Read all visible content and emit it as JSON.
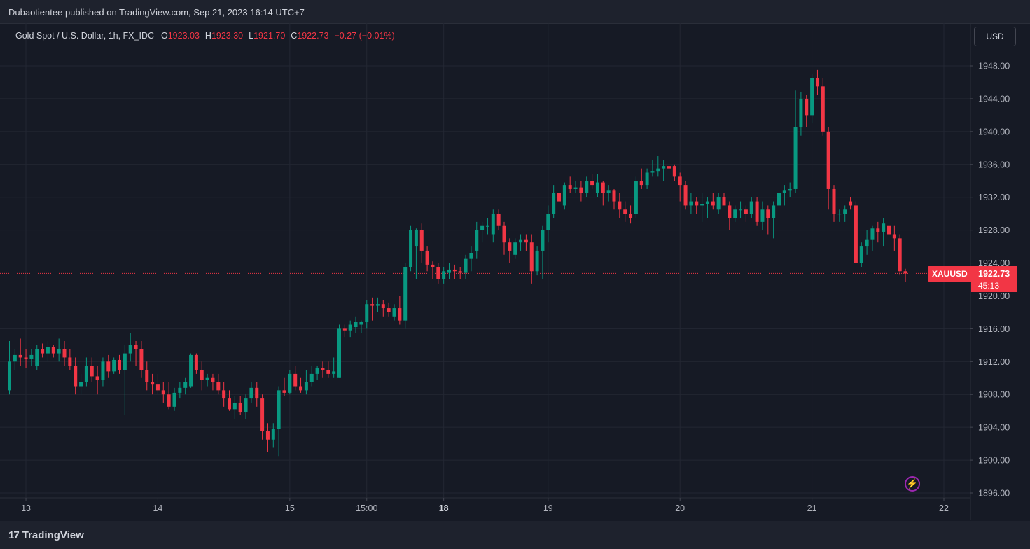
{
  "header": {
    "publish_line": "Dubaotientee published on TradingView.com, Sep 21, 2023 16:14 UTC+7"
  },
  "legend": {
    "symbol": "Gold Spot / U.S. Dollar, 1h, FX_IDC",
    "o_label": "O",
    "o_value": "1923.03",
    "h_label": "H",
    "h_value": "1923.30",
    "l_label": "L",
    "l_value": "1921.70",
    "c_label": "C",
    "c_value": "1922.73",
    "change": "−0.27 (−0.01%)"
  },
  "currency_button": "USD",
  "last_price": {
    "symbol": "XAUUSD",
    "price": "1922.73",
    "countdown": "45:13"
  },
  "footer": {
    "brand": "TradingView",
    "logo_mark": "17"
  },
  "colors": {
    "up": "#089981",
    "down": "#f23645",
    "accent": "#9c27b0"
  },
  "chart_data": {
    "type": "candlestick",
    "title": "Gold Spot / U.S. Dollar, 1h, FX_IDC",
    "ylim": [
      1896,
      1950
    ],
    "y_ticks": [
      "1896.00",
      "1900.00",
      "1904.00",
      "1908.00",
      "1912.00",
      "1916.00",
      "1920.00",
      "1924.00",
      "1928.00",
      "1932.00",
      "1936.00",
      "1940.00",
      "1944.00",
      "1948.00"
    ],
    "x_ticks": [
      {
        "label": "13",
        "index": 3,
        "bold": false
      },
      {
        "label": "14",
        "index": 27,
        "bold": false
      },
      {
        "label": "15",
        "index": 51,
        "bold": false
      },
      {
        "label": "15:00",
        "index": 65,
        "bold": false
      },
      {
        "label": "18",
        "index": 79,
        "bold": true
      },
      {
        "label": "19",
        "index": 98,
        "bold": false
      },
      {
        "label": "20",
        "index": 122,
        "bold": false
      },
      {
        "label": "21",
        "index": 146,
        "bold": false
      },
      {
        "label": "22",
        "index": 170,
        "bold": false
      }
    ],
    "last_price": 1922.73,
    "ohlc": [
      [
        1908.5,
        1914.5,
        1908.0,
        1912.0
      ],
      [
        1912.0,
        1913.5,
        1911.0,
        1912.8
      ],
      [
        1912.8,
        1914.8,
        1911.5,
        1912.5
      ],
      [
        1912.5,
        1913.5,
        1911.2,
        1912.3
      ],
      [
        1912.3,
        1913.5,
        1911.5,
        1912.8
      ],
      [
        1911.5,
        1914.0,
        1911.0,
        1913.5
      ],
      [
        1913.5,
        1914.2,
        1912.5,
        1913.0
      ],
      [
        1913.0,
        1914.5,
        1912.0,
        1913.8
      ],
      [
        1913.8,
        1914.0,
        1912.5,
        1913.0
      ],
      [
        1913.0,
        1914.8,
        1912.0,
        1913.5
      ],
      [
        1913.5,
        1914.5,
        1911.5,
        1912.5
      ],
      [
        1912.5,
        1913.5,
        1911.0,
        1911.5
      ],
      [
        1911.5,
        1912.5,
        1908.0,
        1909.0
      ],
      [
        1909.0,
        1910.5,
        1908.0,
        1909.5
      ],
      [
        1909.5,
        1912.5,
        1909.0,
        1911.5
      ],
      [
        1911.5,
        1912.5,
        1909.5,
        1910.2
      ],
      [
        1910.2,
        1911.5,
        1908.0,
        1909.8
      ],
      [
        1909.8,
        1912.5,
        1909.0,
        1912.0
      ],
      [
        1912.0,
        1912.8,
        1910.0,
        1910.8
      ],
      [
        1910.8,
        1912.5,
        1910.5,
        1912.2
      ],
      [
        1912.2,
        1912.8,
        1910.5,
        1911.0
      ],
      [
        1911.0,
        1914.0,
        1905.5,
        1913.0
      ],
      [
        1913.0,
        1915.5,
        1912.0,
        1914.0
      ],
      [
        1914.0,
        1914.5,
        1911.5,
        1913.5
      ],
      [
        1913.5,
        1914.5,
        1910.0,
        1911.0
      ],
      [
        1911.0,
        1912.0,
        1908.5,
        1909.5
      ],
      [
        1909.5,
        1910.5,
        1908.0,
        1909.2
      ],
      [
        1909.2,
        1910.5,
        1908.0,
        1908.5
      ],
      [
        1908.5,
        1909.5,
        1907.0,
        1908.0
      ],
      [
        1908.0,
        1909.5,
        1906.2,
        1906.5
      ],
      [
        1906.5,
        1908.8,
        1906.0,
        1908.2
      ],
      [
        1908.2,
        1909.5,
        1907.5,
        1908.8
      ],
      [
        1908.8,
        1910.0,
        1908.0,
        1909.5
      ],
      [
        1909.0,
        1913.0,
        1908.8,
        1912.8
      ],
      [
        1912.8,
        1913.0,
        1910.5,
        1911.0
      ],
      [
        1911.0,
        1912.0,
        1908.5,
        1909.8
      ],
      [
        1909.8,
        1910.5,
        1909.0,
        1910.0
      ],
      [
        1910.0,
        1910.5,
        1908.5,
        1909.5
      ],
      [
        1909.5,
        1910.5,
        1908.0,
        1908.5
      ],
      [
        1908.5,
        1909.5,
        1906.5,
        1907.5
      ],
      [
        1907.5,
        1908.5,
        1906.0,
        1906.2
      ],
      [
        1906.2,
        1907.8,
        1905.0,
        1907.0
      ],
      [
        1907.0,
        1907.8,
        1905.5,
        1905.8
      ],
      [
        1905.8,
        1908.0,
        1905.0,
        1907.5
      ],
      [
        1907.5,
        1909.5,
        1907.0,
        1908.8
      ],
      [
        1908.8,
        1909.5,
        1906.5,
        1907.5
      ],
      [
        1907.5,
        1908.0,
        1902.5,
        1903.5
      ],
      [
        1903.5,
        1904.5,
        1901.0,
        1902.5
      ],
      [
        1902.5,
        1904.5,
        1901.5,
        1903.8
      ],
      [
        1903.8,
        1909.0,
        1900.5,
        1908.5
      ],
      [
        1908.5,
        1910.0,
        1907.8,
        1908.2
      ],
      [
        1908.2,
        1911.0,
        1908.0,
        1910.5
      ],
      [
        1910.5,
        1911.5,
        1908.5,
        1909.0
      ],
      [
        1909.0,
        1910.0,
        1908.2,
        1908.5
      ],
      [
        1908.5,
        1911.0,
        1908.0,
        1909.5
      ],
      [
        1909.5,
        1911.5,
        1909.0,
        1910.5
      ],
      [
        1910.5,
        1911.5,
        1909.8,
        1911.2
      ],
      [
        1911.2,
        1912.0,
        1910.0,
        1911.0
      ],
      [
        1911.0,
        1912.0,
        1910.0,
        1910.5
      ],
      [
        1910.5,
        1912.5,
        1910.0,
        1910.8
      ],
      [
        1910.0,
        1916.5,
        1910.0,
        1916.0
      ],
      [
        1916.0,
        1916.5,
        1915.0,
        1915.8
      ],
      [
        1915.8,
        1917.0,
        1915.0,
        1916.5
      ],
      [
        1916.2,
        1917.5,
        1915.5,
        1916.8
      ],
      [
        1916.5,
        1917.0,
        1915.5,
        1916.8
      ],
      [
        1916.8,
        1919.5,
        1916.0,
        1919.0
      ],
      [
        1919.0,
        1919.8,
        1917.0,
        1918.8
      ],
      [
        1918.8,
        1919.8,
        1918.0,
        1919.0
      ],
      [
        1919.0,
        1919.5,
        1917.5,
        1918.5
      ],
      [
        1918.5,
        1919.2,
        1917.5,
        1918.0
      ],
      [
        1917.5,
        1919.0,
        1917.0,
        1918.5
      ],
      [
        1918.5,
        1920.0,
        1916.5,
        1917.0
      ],
      [
        1917.0,
        1924.0,
        1916.0,
        1923.5
      ],
      [
        1923.5,
        1928.5,
        1923.0,
        1928.0
      ],
      [
        1926.0,
        1928.2,
        1922.0,
        1928.0
      ],
      [
        1928.0,
        1928.8,
        1924.0,
        1925.5
      ],
      [
        1925.5,
        1926.0,
        1923.0,
        1923.8
      ],
      [
        1923.8,
        1924.2,
        1922.0,
        1923.5
      ],
      [
        1923.5,
        1924.0,
        1921.5,
        1922.0
      ],
      [
        1922.0,
        1923.5,
        1921.5,
        1923.0
      ],
      [
        1922.8,
        1924.0,
        1922.0,
        1923.2
      ],
      [
        1923.2,
        1923.8,
        1922.0,
        1923.0
      ],
      [
        1923.0,
        1923.5,
        1922.0,
        1922.8
      ],
      [
        1922.8,
        1925.0,
        1922.0,
        1924.5
      ],
      [
        1924.5,
        1926.0,
        1923.0,
        1925.2
      ],
      [
        1925.5,
        1929.0,
        1924.5,
        1928.0
      ],
      [
        1928.0,
        1929.0,
        1926.5,
        1928.5
      ],
      [
        1928.5,
        1929.5,
        1927.5,
        1928.5
      ],
      [
        1927.5,
        1930.5,
        1926.5,
        1930.0
      ],
      [
        1930.0,
        1930.5,
        1928.0,
        1928.5
      ],
      [
        1928.5,
        1929.0,
        1925.0,
        1926.5
      ],
      [
        1926.5,
        1927.0,
        1924.0,
        1925.5
      ],
      [
        1925.0,
        1927.0,
        1924.5,
        1926.5
      ],
      [
        1926.5,
        1927.5,
        1925.5,
        1926.8
      ],
      [
        1926.8,
        1927.5,
        1925.5,
        1926.5
      ],
      [
        1926.5,
        1927.5,
        1921.5,
        1923.0
      ],
      [
        1923.0,
        1926.0,
        1922.5,
        1925.5
      ],
      [
        1925.5,
        1928.5,
        1922.0,
        1928.0
      ],
      [
        1928.0,
        1931.0,
        1926.5,
        1930.0
      ],
      [
        1930.0,
        1933.5,
        1929.5,
        1932.5
      ],
      [
        1932.5,
        1932.8,
        1930.5,
        1931.5
      ],
      [
        1931.0,
        1933.8,
        1930.5,
        1933.5
      ],
      [
        1933.5,
        1934.5,
        1932.5,
        1933.0
      ],
      [
        1933.0,
        1934.0,
        1932.5,
        1933.2
      ],
      [
        1933.2,
        1934.0,
        1931.5,
        1932.5
      ],
      [
        1932.5,
        1934.5,
        1932.0,
        1934.0
      ],
      [
        1934.0,
        1934.8,
        1933.0,
        1933.5
      ],
      [
        1932.5,
        1934.8,
        1932.0,
        1933.8
      ],
      [
        1933.8,
        1934.0,
        1931.0,
        1932.5
      ],
      [
        1932.5,
        1933.5,
        1931.5,
        1932.8
      ],
      [
        1932.8,
        1933.0,
        1930.5,
        1931.5
      ],
      [
        1931.5,
        1932.5,
        1929.5,
        1930.5
      ],
      [
        1930.5,
        1931.5,
        1929.0,
        1930.0
      ],
      [
        1930.0,
        1931.0,
        1928.8,
        1929.5
      ],
      [
        1930.0,
        1934.5,
        1929.5,
        1934.0
      ],
      [
        1934.0,
        1935.5,
        1933.0,
        1933.5
      ],
      [
        1933.5,
        1935.5,
        1933.0,
        1935.0
      ],
      [
        1935.0,
        1936.5,
        1934.5,
        1935.2
      ],
      [
        1935.2,
        1937.0,
        1934.5,
        1935.5
      ],
      [
        1935.5,
        1936.5,
        1934.0,
        1935.8
      ],
      [
        1935.8,
        1937.2,
        1934.0,
        1935.5
      ],
      [
        1935.8,
        1936.0,
        1934.0,
        1934.5
      ],
      [
        1934.5,
        1935.0,
        1931.5,
        1933.5
      ],
      [
        1933.5,
        1934.0,
        1930.5,
        1931.0
      ],
      [
        1931.0,
        1932.5,
        1930.0,
        1931.5
      ],
      [
        1931.5,
        1932.0,
        1930.0,
        1931.0
      ],
      [
        1931.0,
        1932.5,
        1929.0,
        1931.2
      ],
      [
        1931.2,
        1932.0,
        1929.5,
        1931.5
      ],
      [
        1931.5,
        1932.5,
        1930.5,
        1931.0
      ],
      [
        1930.5,
        1932.5,
        1930.0,
        1932.0
      ],
      [
        1932.0,
        1932.5,
        1931.5,
        1931.0
      ],
      [
        1931.0,
        1931.5,
        1928.0,
        1929.5
      ],
      [
        1929.5,
        1931.0,
        1929.0,
        1930.5
      ],
      [
        1930.5,
        1931.5,
        1929.5,
        1930.5
      ],
      [
        1930.5,
        1931.0,
        1929.0,
        1930.0
      ],
      [
        1930.0,
        1932.0,
        1929.5,
        1931.5
      ],
      [
        1931.5,
        1932.0,
        1928.5,
        1929.0
      ],
      [
        1929.0,
        1931.5,
        1928.0,
        1930.5
      ],
      [
        1930.5,
        1931.0,
        1927.5,
        1929.5
      ],
      [
        1929.5,
        1931.5,
        1927.0,
        1931.0
      ],
      [
        1931.0,
        1933.0,
        1930.0,
        1932.5
      ],
      [
        1932.5,
        1933.5,
        1931.0,
        1932.8
      ],
      [
        1932.8,
        1933.8,
        1932.0,
        1933.0
      ],
      [
        1933.0,
        1945.0,
        1932.5,
        1940.5
      ],
      [
        1940.5,
        1944.8,
        1939.5,
        1944.0
      ],
      [
        1944.0,
        1944.5,
        1940.5,
        1942.0
      ],
      [
        1942.0,
        1947.0,
        1941.0,
        1946.5
      ],
      [
        1946.5,
        1947.5,
        1944.5,
        1945.5
      ],
      [
        1945.5,
        1946.5,
        1939.5,
        1940.0
      ],
      [
        1940.0,
        1940.5,
        1930.5,
        1933.0
      ],
      [
        1933.0,
        1933.5,
        1929.0,
        1930.0
      ],
      [
        1930.0,
        1930.5,
        1929.0,
        1930.0
      ],
      [
        1930.0,
        1931.0,
        1929.0,
        1930.5
      ],
      [
        1931.5,
        1932.0,
        1930.5,
        1931.0
      ],
      [
        1931.0,
        1931.5,
        1924.5,
        1924.0
      ],
      [
        1924.0,
        1926.5,
        1923.5,
        1926.0
      ],
      [
        1926.0,
        1928.0,
        1925.0,
        1926.8
      ],
      [
        1926.8,
        1928.5,
        1925.5,
        1928.2
      ],
      [
        1928.2,
        1929.0,
        1926.5,
        1927.8
      ],
      [
        1927.8,
        1929.5,
        1926.0,
        1928.8
      ],
      [
        1928.5,
        1929.0,
        1926.5,
        1927.5
      ],
      [
        1927.5,
        1928.5,
        1925.5,
        1927.0
      ],
      [
        1927.0,
        1927.5,
        1922.5,
        1923.0
      ],
      [
        1923.0,
        1923.3,
        1921.7,
        1922.73
      ]
    ]
  }
}
